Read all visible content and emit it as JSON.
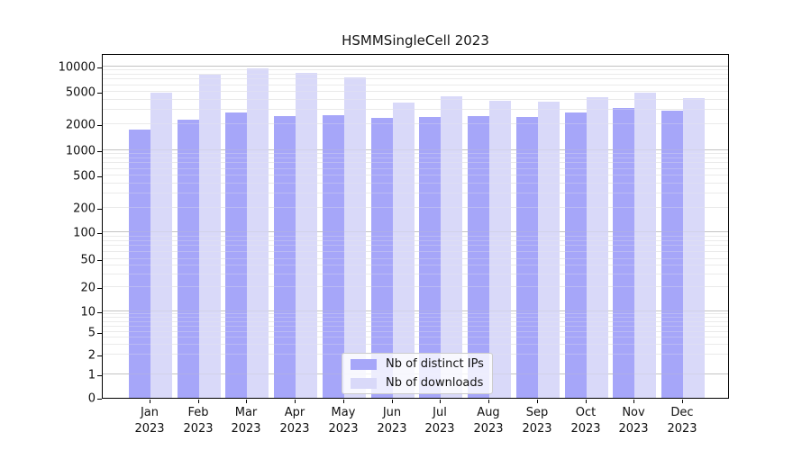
{
  "title": "HSMMSingleCell 2023",
  "colors": {
    "distinct_ips": "#a6a6f9",
    "downloads": "#d9d9f9",
    "grid_major": "#c3c3c3",
    "grid_minor": "#eaeaea",
    "axis": "#000000"
  },
  "legend": {
    "items": [
      {
        "label": "Nb of distinct IPs",
        "color": "#a6a6f9"
      },
      {
        "label": "Nb of downloads",
        "color": "#d9d9f9"
      }
    ]
  },
  "chart_data": {
    "type": "bar",
    "title": "HSMMSingleCell 2023",
    "categories": [
      "Jan 2023",
      "Feb 2023",
      "Mar 2023",
      "Apr 2023",
      "May 2023",
      "Jun 2023",
      "Jul 2023",
      "Aug 2023",
      "Sep 2023",
      "Oct 2023",
      "Nov 2023",
      "Dec 2023"
    ],
    "series": [
      {
        "name": "Nb of distinct IPs",
        "color": "#a6a6f9",
        "values": [
          1700,
          2250,
          2800,
          2500,
          2550,
          2400,
          2450,
          2500,
          2450,
          2750,
          3150,
          2950
        ]
      },
      {
        "name": "Nb of downloads",
        "color": "#d9d9f9",
        "values": [
          4900,
          8000,
          9400,
          8500,
          7500,
          3700,
          4400,
          3900,
          3800,
          4300,
          4900,
          4200
        ]
      }
    ],
    "xlabel": "",
    "ylabel": "",
    "y_scale": "symlog",
    "y_ticks": [
      0,
      1,
      2,
      5,
      10,
      20,
      50,
      100,
      200,
      500,
      1000,
      2000,
      5000,
      10000
    ],
    "ylim": [
      0,
      10000
    ],
    "grid": true,
    "legend_position": "bottom-center-inside"
  }
}
